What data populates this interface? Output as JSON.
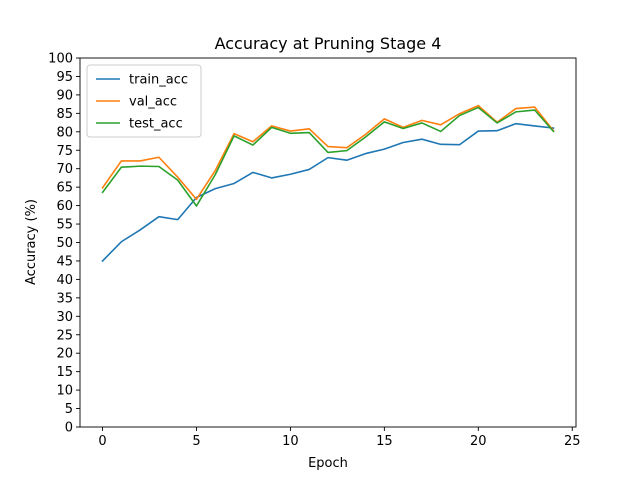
{
  "chart_data": {
    "type": "line",
    "title": "Accuracy at Pruning Stage 4",
    "xlabel": "Epoch",
    "ylabel": "Accuracy (%)",
    "xlim": [
      -1.2,
      25.2
    ],
    "ylim": [
      0,
      100
    ],
    "xticks": [
      0,
      5,
      10,
      15,
      20,
      25
    ],
    "yticks": [
      0,
      5,
      10,
      15,
      20,
      25,
      30,
      35,
      40,
      45,
      50,
      55,
      60,
      65,
      70,
      75,
      80,
      85,
      90,
      95,
      100
    ],
    "grid": false,
    "legend_position": "top-left",
    "x": [
      0,
      1,
      2,
      3,
      4,
      5,
      6,
      7,
      8,
      9,
      10,
      11,
      12,
      13,
      14,
      15,
      16,
      17,
      18,
      19,
      20,
      21,
      22,
      23,
      24
    ],
    "series": [
      {
        "name": "train_acc",
        "color": "#1f77b4",
        "values": [
          45.0,
          50.2,
          53.4,
          57.0,
          56.2,
          62.2,
          64.6,
          66.0,
          69.0,
          67.5,
          68.5,
          69.8,
          73.0,
          72.3,
          74.1,
          75.3,
          77.1,
          78.0,
          76.6,
          76.5,
          80.2,
          80.3,
          82.2,
          81.6,
          81.0
        ]
      },
      {
        "name": "val_acc",
        "color": "#ff7f0e",
        "values": [
          64.8,
          72.1,
          72.1,
          73.1,
          67.7,
          61.7,
          69.5,
          79.5,
          77.3,
          81.6,
          80.2,
          80.8,
          76.0,
          75.7,
          79.3,
          83.5,
          81.2,
          83.1,
          81.9,
          84.9,
          87.1,
          82.6,
          86.3,
          86.7,
          80.3
        ]
      },
      {
        "name": "test_acc",
        "color": "#2ca02c",
        "values": [
          63.6,
          70.4,
          70.7,
          70.6,
          66.9,
          59.9,
          68.4,
          78.9,
          76.4,
          81.2,
          79.6,
          79.8,
          74.4,
          74.9,
          78.6,
          82.7,
          80.9,
          82.4,
          80.1,
          84.4,
          86.6,
          82.4,
          85.4,
          85.9,
          80.1
        ]
      }
    ]
  }
}
